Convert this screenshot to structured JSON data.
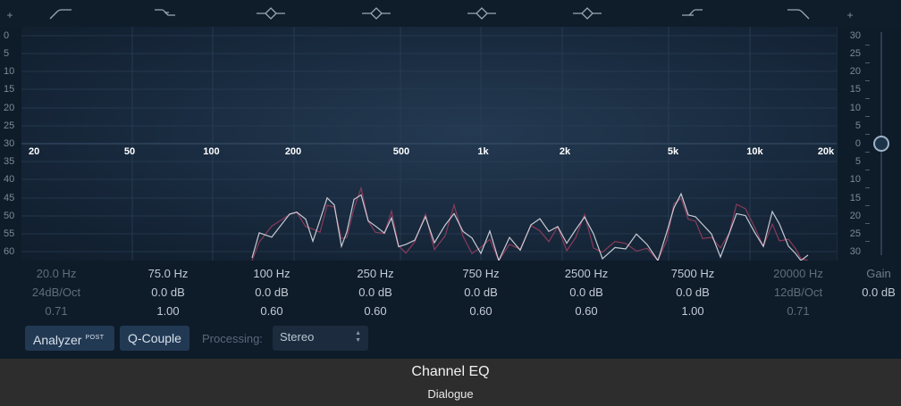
{
  "window": {
    "title": "Channel EQ",
    "subtitle": "Dialogue"
  },
  "band_icons": [
    {
      "name": "low-cut-icon"
    },
    {
      "name": "low-shelf-icon"
    },
    {
      "name": "bell-icon"
    },
    {
      "name": "bell-icon"
    },
    {
      "name": "bell-icon"
    },
    {
      "name": "bell-icon"
    },
    {
      "name": "high-shelf-icon"
    },
    {
      "name": "high-cut-icon"
    }
  ],
  "plus_symbols": {
    "left": "+",
    "right": "+"
  },
  "left_scale": [
    "0",
    "5",
    "10",
    "15",
    "20",
    "25",
    "30",
    "35",
    "40",
    "45",
    "50",
    "55",
    "60"
  ],
  "right_scale": [
    "30",
    "25",
    "20",
    "15",
    "10",
    "5",
    "0",
    "5",
    "10",
    "15",
    "20",
    "25",
    "30"
  ],
  "freq_axis": [
    {
      "label": "20",
      "hz": 20
    },
    {
      "label": "50",
      "hz": 50
    },
    {
      "label": "100",
      "hz": 100
    },
    {
      "label": "200",
      "hz": 200
    },
    {
      "label": "500",
      "hz": 500
    },
    {
      "label": "1k",
      "hz": 1000
    },
    {
      "label": "2k",
      "hz": 2000
    },
    {
      "label": "5k",
      "hz": 5000
    },
    {
      "label": "10k",
      "hz": 10000
    },
    {
      "label": "20k",
      "hz": 20000
    }
  ],
  "bands": [
    {
      "freq": "20.0 Hz",
      "gain": "24dB/Oct",
      "q": "0.71",
      "active": false
    },
    {
      "freq": "75.0 Hz",
      "gain": "0.0 dB",
      "q": "1.00",
      "active": true
    },
    {
      "freq": "100 Hz",
      "gain": "0.0 dB",
      "q": "0.60",
      "active": true
    },
    {
      "freq": "250 Hz",
      "gain": "0.0 dB",
      "q": "0.60",
      "active": true
    },
    {
      "freq": "750 Hz",
      "gain": "0.0 dB",
      "q": "0.60",
      "active": true
    },
    {
      "freq": "2500 Hz",
      "gain": "0.0 dB",
      "q": "0.60",
      "active": true
    },
    {
      "freq": "7500 Hz",
      "gain": "0.0 dB",
      "q": "1.00",
      "active": true
    },
    {
      "freq": "20000 Hz",
      "gain": "12dB/Oct",
      "q": "0.71",
      "active": false
    }
  ],
  "master_gain": {
    "label": "Gain",
    "value": "0.0 dB"
  },
  "controls": {
    "analyzer_label": "Analyzer",
    "analyzer_post": "POST",
    "qcouple_label": "Q-Couple",
    "processing_label": "Processing:",
    "processing_value": "Stereo",
    "processing_arrows": "▲▼"
  },
  "colors": {
    "background": "#0e1b29",
    "graph": "#1c3046",
    "analyzer_white": "#d9dde3",
    "analyzer_red": "#8a3a5a",
    "button": "#223954",
    "footer": "#2d2d2d"
  }
}
